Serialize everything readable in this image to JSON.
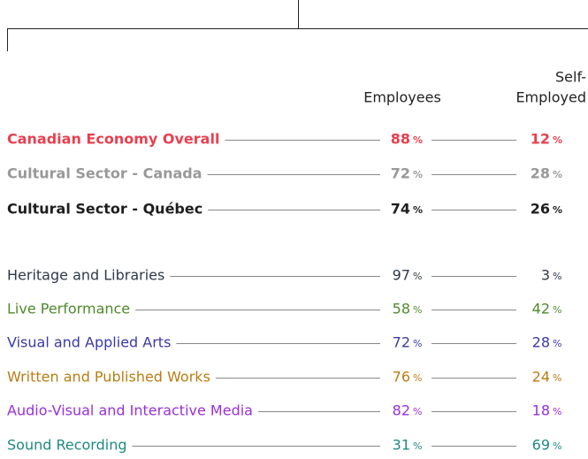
{
  "headers": {
    "employees": "Employees",
    "self_employed": [
      "Self-",
      "Employed"
    ]
  },
  "unit": "%",
  "groups": [
    [
      {
        "label": "Canadian Economy Overall",
        "employees": "88",
        "self_employed": "12",
        "color": "#e8404f",
        "bold": true
      },
      {
        "label": "Cultural Sector - Canada",
        "employees": "72",
        "self_employed": "28",
        "color": "#999999",
        "bold": true
      },
      {
        "label": "Cultural Sector - Québec",
        "employees": "74",
        "self_employed": "26",
        "color": "#1e1e1e",
        "bold": true
      }
    ],
    [
      {
        "label": "Heritage and Libraries",
        "employees": "97",
        "self_employed": "3",
        "color": "#2f3a48",
        "bold": false
      },
      {
        "label": "Live Performance",
        "employees": "58",
        "self_employed": "42",
        "color": "#4f8a2b",
        "bold": false
      },
      {
        "label": "Visual and Applied Arts",
        "employees": "72",
        "self_employed": "28",
        "color": "#3b39a8",
        "bold": false
      },
      {
        "label": "Written and Published Works",
        "employees": "76",
        "self_employed": "24",
        "color": "#b97c12",
        "bold": false
      },
      {
        "label": "Audio-Visual and Interactive Media",
        "employees": "82",
        "self_employed": "18",
        "color": "#9a2fd8",
        "bold": false
      },
      {
        "label": "Sound Recording",
        "employees": "31",
        "self_employed": "69",
        "color": "#1f8a80",
        "bold": false
      }
    ]
  ]
}
